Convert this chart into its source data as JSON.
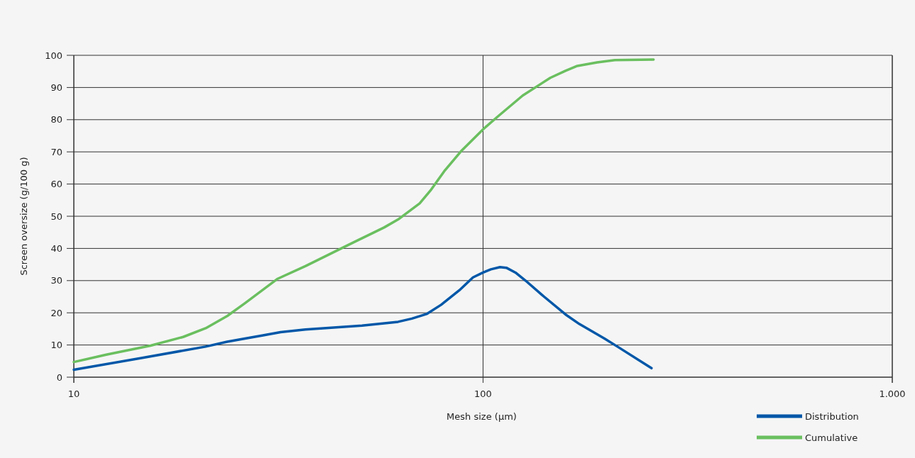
{
  "chart_data": {
    "type": "line",
    "xlabel": "Mesh size (µm)",
    "ylabel": "Screen oversize (g/100 g)",
    "log": "x",
    "xlim": [
      10,
      1000
    ],
    "xticks": [
      10,
      100,
      {
        "value": 1000,
        "label": "1.000"
      }
    ],
    "ylim": [
      0,
      100
    ],
    "yticks": [
      0,
      10,
      20,
      30,
      40,
      50,
      60,
      70,
      80,
      90,
      100
    ],
    "grid": true,
    "legend": "bottom right",
    "marker": "none",
    "line_style": "solid",
    "series": [
      {
        "name": "Distribution",
        "color": "#0057a8",
        "x": [
          10,
          14.7,
          21,
          23.7,
          26.2,
          29,
          32,
          36.8,
          50.6,
          62,
          67,
          73,
          79,
          87.5,
          94.5,
          100,
          104.5,
          110,
          114,
          120,
          127,
          141,
          159,
          172,
          198,
          213,
          258
        ],
        "values": [
          2.3,
          6,
          9.5,
          11,
          12,
          13,
          14,
          14.8,
          16,
          17.2,
          18.2,
          19.7,
          22.5,
          27,
          31,
          32.5,
          33.5,
          34.2,
          34,
          32.5,
          30,
          25,
          19.5,
          16.5,
          12,
          9.5,
          2.8
        ]
      },
      {
        "name": "Cumulative",
        "color": "#6abf5f",
        "x": [
          10,
          12,
          15.4,
          18.5,
          21,
          23.7,
          26.2,
          31.4,
          36.8,
          46.7,
          57.3,
          62,
          70,
          74.4,
          80.4,
          88.8,
          100,
          108.7,
          125,
          146,
          159,
          170,
          190,
          210,
          261
        ],
        "values": [
          4.7,
          7,
          9.8,
          12.5,
          15.2,
          19,
          23,
          30.5,
          34.5,
          41,
          46.5,
          49,
          54,
          58,
          64,
          70.5,
          77,
          81,
          87.5,
          93,
          95.2,
          96.7,
          97.8,
          98.5,
          98.7
        ]
      }
    ]
  }
}
